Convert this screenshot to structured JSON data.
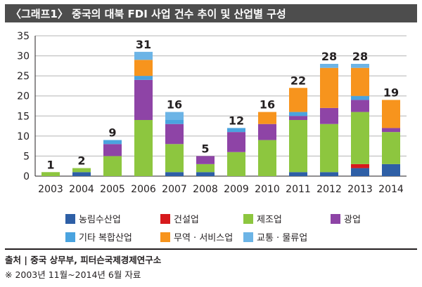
{
  "page": {
    "title": "〈그래프1〉 중국의 대북 FDI 사업 건수 추이 및 산업별 구성",
    "source": "출처 | 중국 상무부, 피터슨국제경제연구소",
    "note": "※ 2003년 11월~2014년 6월 자료"
  },
  "colors": {
    "agri": "#2e5fa6",
    "construction": "#d7191c",
    "manufacturing": "#8dc63f",
    "mining": "#8e44a6",
    "other": "#4aa3df",
    "trade": "#f7941d",
    "transport": "#6cb4e6"
  },
  "chart_data": {
    "type": "bar",
    "stacked": true,
    "title": "〈그래프1〉 중국의 대북 FDI 사업 건수 추이 및 산업별 구성",
    "xlabel": "",
    "ylabel": "",
    "ylim": [
      0,
      35
    ],
    "yticks": [
      0,
      5,
      10,
      15,
      20,
      25,
      30,
      35
    ],
    "grid": true,
    "categories": [
      "2003",
      "2004",
      "2005",
      "2006",
      "2007",
      "2008",
      "2009",
      "2010",
      "2011",
      "2012",
      "2013",
      "2014"
    ],
    "totals": [
      1,
      2,
      9,
      31,
      16,
      5,
      12,
      16,
      22,
      28,
      28,
      19
    ],
    "series": [
      {
        "key": "agri",
        "name": "농림수산업",
        "values": [
          0,
          1,
          0,
          0,
          1,
          1,
          0,
          0,
          1,
          1,
          2,
          3
        ]
      },
      {
        "key": "construction",
        "name": "건설업",
        "values": [
          0,
          0,
          0,
          0,
          0,
          0,
          0,
          0,
          0,
          0,
          1,
          0
        ]
      },
      {
        "key": "manufacturing",
        "name": "제조업",
        "values": [
          1,
          1,
          5,
          14,
          7,
          2,
          6,
          9,
          13,
          12,
          13,
          8
        ]
      },
      {
        "key": "mining",
        "name": "광업",
        "values": [
          0,
          0,
          3,
          10,
          5,
          2,
          5,
          4,
          1,
          4,
          3,
          1
        ]
      },
      {
        "key": "other",
        "name": "기타 복합산업",
        "values": [
          0,
          0,
          1,
          1,
          1,
          0,
          1,
          0,
          1,
          0,
          1,
          0
        ]
      },
      {
        "key": "trade",
        "name": "무역 · 서비스업",
        "values": [
          0,
          0,
          0,
          4,
          0,
          0,
          0,
          3,
          6,
          10,
          7,
          7
        ]
      },
      {
        "key": "transport",
        "name": "교통 · 물류업",
        "values": [
          0,
          0,
          0,
          2,
          2,
          0,
          0,
          0,
          0,
          1,
          1,
          0
        ]
      }
    ],
    "legend_position": "bottom"
  }
}
